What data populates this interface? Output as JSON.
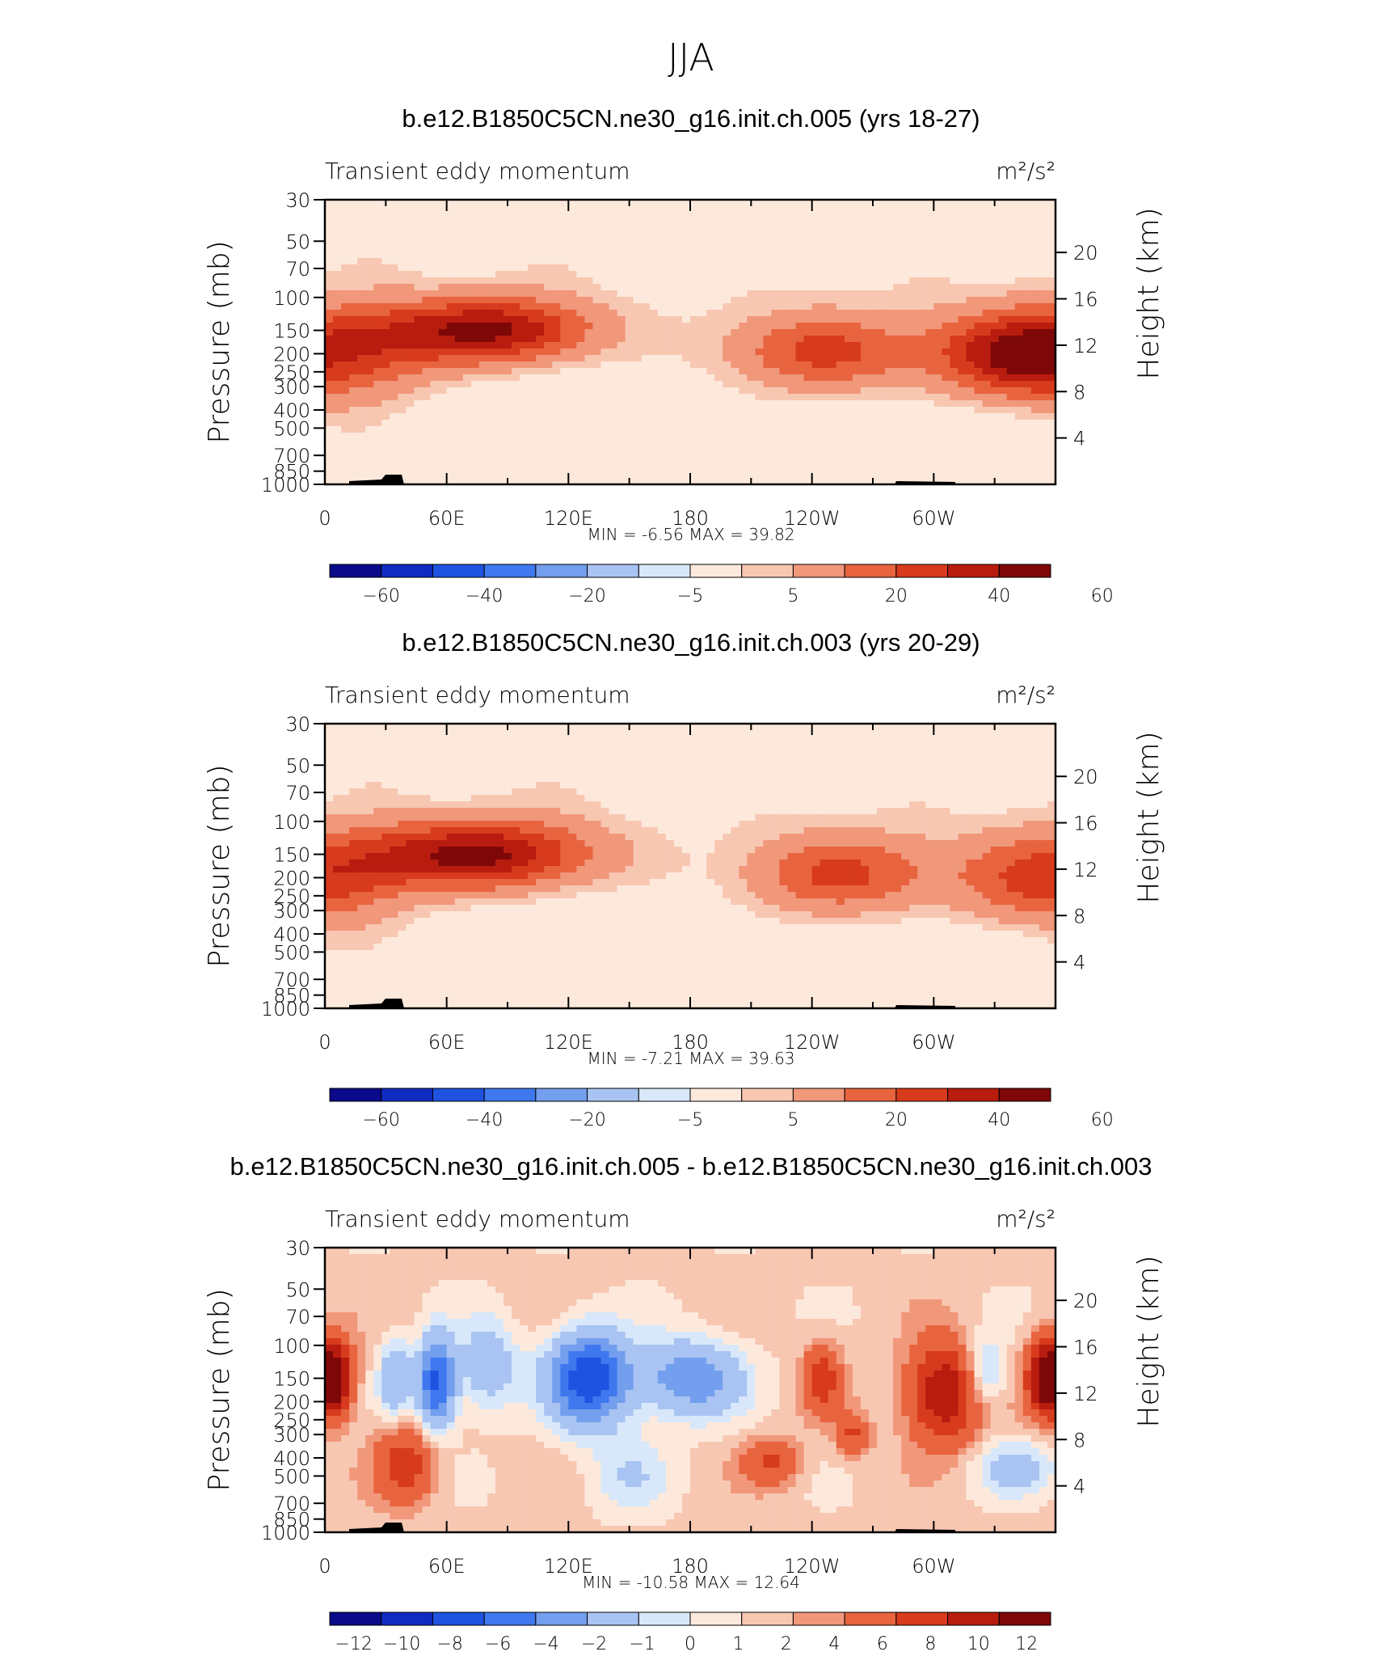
{
  "page_title": "JJA",
  "chart_data": [
    {
      "type": "heatmap",
      "title": "b.e12.B1850C5CN.ne30_g16.init.ch.005 (yrs 18-27)",
      "left_label": "Transient eddy momentum",
      "units": "m²/s²",
      "ylabel": "Pressure (mb)",
      "y2label": "Height (km)",
      "pressure_ticks": [
        "30",
        "50",
        "70",
        "100",
        "150",
        "200",
        "250",
        "300",
        "400",
        "500",
        "700",
        "850",
        "1000"
      ],
      "height_ticks": [
        "20",
        "16",
        "12",
        "8",
        "4"
      ],
      "lon_ticks": [
        "0",
        "60E",
        "120E",
        "180",
        "120W",
        "60W"
      ],
      "stats": "MIN =   -6.56   MAX =   39.82",
      "colorbar_labels": [
        "-60",
        "-40",
        "-20",
        "-5",
        "5",
        "20",
        "40",
        "60"
      ],
      "palette": [
        "#0a0a8a",
        "#0f2bc2",
        "#1f52e0",
        "#3f78ee",
        "#749eee",
        "#a9c4f2",
        "#d8e8fa",
        "#fde9dc",
        "#f8c7b2",
        "#f1977a",
        "#e8643f",
        "#d73a1c",
        "#b81c0f",
        "#7e0808"
      ],
      "features": [
        {
          "lon": 0,
          "p": 200,
          "dlon": 45,
          "dp": 110,
          "value": 38
        },
        {
          "lon": 360,
          "p": 200,
          "dlon": 45,
          "dp": 110,
          "value": 38
        },
        {
          "lon": 60,
          "p": 150,
          "dlon": 48,
          "dp": 60,
          "value": 28
        },
        {
          "lon": 95,
          "p": 150,
          "dlon": 42,
          "dp": 60,
          "value": 30
        },
        {
          "lon": 245,
          "p": 195,
          "dlon": 45,
          "dp": 90,
          "value": 30
        },
        {
          "lon": 340,
          "p": 200,
          "dlon": 45,
          "dp": 100,
          "value": 26
        },
        {
          "lon": 120,
          "p": 450,
          "dlon": 80,
          "dp": 350,
          "value": -6
        },
        {
          "lon": 300,
          "p": 550,
          "dlon": 70,
          "dp": 350,
          "value": -6
        }
      ]
    },
    {
      "type": "heatmap",
      "title": "b.e12.B1850C5CN.ne30_g16.init.ch.003 (yrs 20-29)",
      "left_label": "Transient eddy momentum",
      "units": "m²/s²",
      "ylabel": "Pressure (mb)",
      "y2label": "Height (km)",
      "pressure_ticks": [
        "30",
        "50",
        "70",
        "100",
        "150",
        "200",
        "250",
        "300",
        "400",
        "500",
        "700",
        "850",
        "1000"
      ],
      "height_ticks": [
        "20",
        "16",
        "12",
        "8",
        "4"
      ],
      "lon_ticks": [
        "0",
        "60E",
        "120E",
        "180",
        "120W",
        "60W"
      ],
      "stats": "MIN =   -7.21   MAX =   39.63",
      "colorbar_labels": [
        "-60",
        "-40",
        "-20",
        "-5",
        "5",
        "20",
        "40",
        "60"
      ],
      "palette": [
        "#0a0a8a",
        "#0f2bc2",
        "#1f52e0",
        "#3f78ee",
        "#749eee",
        "#a9c4f2",
        "#d8e8fa",
        "#fde9dc",
        "#f8c7b2",
        "#f1977a",
        "#e8643f",
        "#d73a1c",
        "#b81c0f",
        "#7e0808"
      ],
      "features": [
        {
          "lon": 0,
          "p": 200,
          "dlon": 40,
          "dp": 110,
          "value": 32
        },
        {
          "lon": 360,
          "p": 200,
          "dlon": 45,
          "dp": 110,
          "value": 35
        },
        {
          "lon": 55,
          "p": 150,
          "dlon": 45,
          "dp": 60,
          "value": 30
        },
        {
          "lon": 95,
          "p": 150,
          "dlon": 45,
          "dp": 65,
          "value": 32
        },
        {
          "lon": 255,
          "p": 190,
          "dlon": 45,
          "dp": 90,
          "value": 30
        },
        {
          "lon": 120,
          "p": 450,
          "dlon": 80,
          "dp": 350,
          "value": -6
        },
        {
          "lon": 300,
          "p": 550,
          "dlon": 70,
          "dp": 350,
          "value": -6
        }
      ]
    },
    {
      "type": "heatmap",
      "title": "b.e12.B1850C5CN.ne30_g16.init.ch.005 - b.e12.B1850C5CN.ne30_g16.init.ch.003",
      "left_label": "Transient eddy momentum",
      "units": "m²/s²",
      "ylabel": "Pressure (mb)",
      "y2label": "Height (km)",
      "pressure_ticks": [
        "30",
        "50",
        "70",
        "100",
        "150",
        "200",
        "250",
        "300",
        "400",
        "500",
        "700",
        "850",
        "1000"
      ],
      "height_ticks": [
        "20",
        "16",
        "12",
        "8",
        "4"
      ],
      "lon_ticks": [
        "0",
        "60E",
        "120E",
        "180",
        "120W",
        "60W"
      ],
      "stats": "MIN =  -10.58   MAX =   12.64",
      "colorbar_labels": [
        "-12",
        "-10",
        "-8",
        "-6",
        "-4",
        "-2",
        "-1",
        "0",
        "1",
        "2",
        "4",
        "6",
        "8",
        "10",
        "12"
      ],
      "palette": [
        "#0a0a8a",
        "#0f2bc2",
        "#1f52e0",
        "#3f78ee",
        "#749eee",
        "#a9c4f2",
        "#d8e8fa",
        "#fde9dc",
        "#f8c7b2",
        "#f1977a",
        "#e8643f",
        "#d73a1c",
        "#b81c0f",
        "#7e0808"
      ],
      "features": [
        {
          "lon": 3,
          "p": 150,
          "dlon": 10,
          "dp": 70,
          "value": 12
        },
        {
          "lon": 357,
          "p": 150,
          "dlon": 10,
          "dp": 70,
          "value": 12
        },
        {
          "lon": 55,
          "p": 160,
          "dlon": 9,
          "dp": 90,
          "value": -9
        },
        {
          "lon": 35,
          "p": 150,
          "dlon": 8,
          "dp": 70,
          "value": -4
        },
        {
          "lon": 80,
          "p": 130,
          "dlon": 14,
          "dp": 70,
          "value": -4
        },
        {
          "lon": 130,
          "p": 150,
          "dlon": 20,
          "dp": 85,
          "value": -10
        },
        {
          "lon": 180,
          "p": 150,
          "dlon": 25,
          "dp": 70,
          "value": -6
        },
        {
          "lon": 245,
          "p": 150,
          "dlon": 9,
          "dp": 65,
          "value": 5
        },
        {
          "lon": 305,
          "p": 180,
          "dlon": 18,
          "dp": 110,
          "value": 8
        },
        {
          "lon": 325,
          "p": 140,
          "dlon": 10,
          "dp": 60,
          "value": -4
        },
        {
          "lon": 40,
          "p": 430,
          "dlon": 15,
          "dp": 200,
          "value": 5
        },
        {
          "lon": 220,
          "p": 420,
          "dlon": 14,
          "dp": 120,
          "value": 4
        },
        {
          "lon": 150,
          "p": 500,
          "dlon": 20,
          "dp": 250,
          "value": -2
        },
        {
          "lon": 340,
          "p": 450,
          "dlon": 20,
          "dp": 150,
          "value": -3
        },
        {
          "lon": 260,
          "p": 300,
          "dlon": 8,
          "dp": 80,
          "value": 4
        }
      ]
    }
  ]
}
